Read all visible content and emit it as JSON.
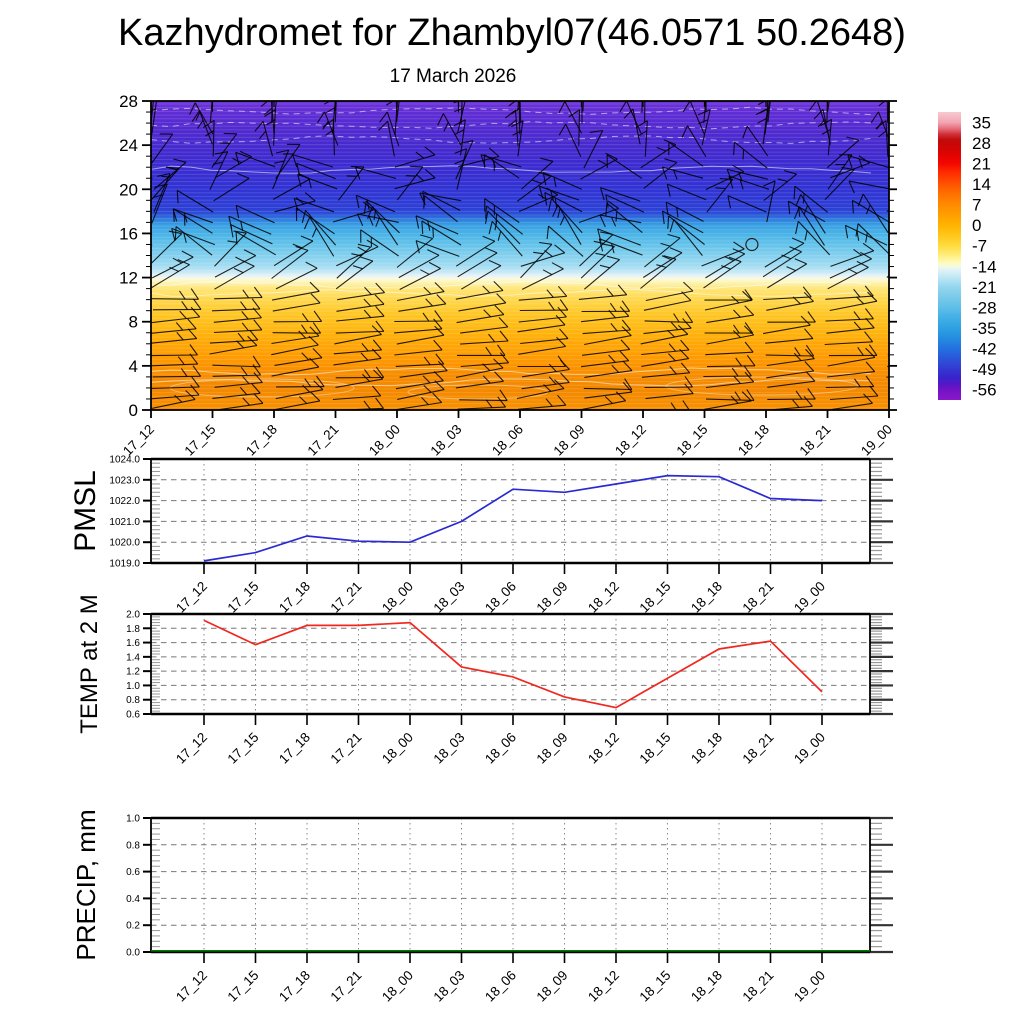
{
  "title": "Kazhydromet for Zhambyl07(46.0571 50.2648)",
  "subtitle": "17 March 2026",
  "time_labels": [
    "17_12",
    "17_15",
    "17_18",
    "17_21",
    "18_00",
    "18_03",
    "18_06",
    "18_09",
    "18_12",
    "18_15",
    "18_18",
    "18_21",
    "19_00"
  ],
  "chart_data": [
    {
      "type": "heatmap",
      "name": "temperature-height-cross-section",
      "x": [
        "17_12",
        "17_15",
        "17_18",
        "17_21",
        "18_00",
        "18_03",
        "18_06",
        "18_09",
        "18_12",
        "18_15",
        "18_18",
        "18_21",
        "19_00"
      ],
      "ylim": [
        0,
        28
      ],
      "yticks": [
        0,
        4,
        8,
        12,
        16,
        20,
        24,
        28
      ],
      "overlay": "wind-barbs",
      "wind_barbs": {
        "cols": 13,
        "rows": 29,
        "seed": 7
      },
      "calm_marker": {
        "x": 9.77,
        "level": 15
      },
      "colorbar": {
        "labels": [
          "35",
          "28",
          "21",
          "14",
          "7",
          "0",
          "-7",
          "-14",
          "-21",
          "-28",
          "-35",
          "-42",
          "-49",
          "-56"
        ],
        "value_top": 38.5,
        "value_bottom": -59.5,
        "stops": [
          [
            0,
            "#f7c9d0"
          ],
          [
            0.036,
            "#f2a6b2"
          ],
          [
            0.056,
            "#e87380"
          ],
          [
            0.077,
            "#d0303a"
          ],
          [
            0.097,
            "#c10a0a"
          ],
          [
            0.13,
            "#d40404"
          ],
          [
            0.16,
            "#ea0400"
          ],
          [
            0.18,
            "#f40800"
          ],
          [
            0.21,
            "#ff2c00"
          ],
          [
            0.25,
            "#ff5200"
          ],
          [
            0.28,
            "#ff6e00"
          ],
          [
            0.32,
            "#ff8a00"
          ],
          [
            0.355,
            "#ff9e00"
          ],
          [
            0.393,
            "#ffb400"
          ],
          [
            0.424,
            "#ffc416"
          ],
          [
            0.465,
            "#ffdc40"
          ],
          [
            0.487,
            "#ffe768"
          ],
          [
            0.507,
            "#fff394"
          ],
          [
            0.527,
            "#fdfbc6"
          ],
          [
            0.537,
            "#f4fae2"
          ],
          [
            0.547,
            "#e2f3f8"
          ],
          [
            0.568,
            "#c7eaf6"
          ],
          [
            0.59,
            "#aadff2"
          ],
          [
            0.607,
            "#95d6ee"
          ],
          [
            0.64,
            "#7bcbea"
          ],
          [
            0.68,
            "#5ebfe8"
          ],
          [
            0.71,
            "#45b1e6"
          ],
          [
            0.75,
            "#2fa1e2"
          ],
          [
            0.78,
            "#2590e0"
          ],
          [
            0.82,
            "#2372e0"
          ],
          [
            0.853,
            "#2a57da"
          ],
          [
            0.893,
            "#3338d2"
          ],
          [
            0.923,
            "#3a22cc"
          ],
          [
            0.945,
            "#5517c8"
          ],
          [
            0.965,
            "#7214c4"
          ],
          [
            1,
            "#8a17ca"
          ]
        ]
      },
      "field_gradient_stops": [
        [
          0,
          "#6e35da"
        ],
        [
          0.04,
          "#5f2dd4"
        ],
        [
          0.09,
          "#522ad0"
        ],
        [
          0.14,
          "#472ace"
        ],
        [
          0.21,
          "#3b2bd0"
        ],
        [
          0.285,
          "#3133d4"
        ],
        [
          0.32,
          "#2e3ad5"
        ],
        [
          0.35,
          "#2d40d6"
        ],
        [
          0.365,
          "#2b50d8"
        ],
        [
          0.382,
          "#2e7ade"
        ],
        [
          0.4,
          "#389ee2"
        ],
        [
          0.43,
          "#49b3e7"
        ],
        [
          0.465,
          "#65c3ea"
        ],
        [
          0.5,
          "#84d0ee"
        ],
        [
          0.536,
          "#a6ddf2"
        ],
        [
          0.552,
          "#c4e8f5"
        ],
        [
          0.565,
          "#e3f2f8"
        ],
        [
          0.572,
          "#f5f8e6"
        ],
        [
          0.58,
          "#fdf9cb"
        ],
        [
          0.594,
          "#fdef9e"
        ],
        [
          0.607,
          "#ffe577"
        ],
        [
          0.643,
          "#ffd84e"
        ],
        [
          0.679,
          "#ffca2d"
        ],
        [
          0.714,
          "#ffbf1b"
        ],
        [
          0.75,
          "#ffb30d"
        ],
        [
          0.786,
          "#ffa706"
        ],
        [
          0.821,
          "#ff9d02"
        ],
        [
          0.857,
          "#fc9300"
        ],
        [
          0.893,
          "#f68c00"
        ],
        [
          0.929,
          "#f28800"
        ],
        [
          1,
          "#f89100"
        ]
      ]
    },
    {
      "type": "line",
      "name": "PMSL",
      "x": [
        "17_12",
        "17_15",
        "17_18",
        "17_21",
        "18_00",
        "18_03",
        "18_06",
        "18_09",
        "18_12",
        "18_15",
        "18_18",
        "18_21",
        "19_00"
      ],
      "values": [
        1019.1,
        1019.5,
        1020.3,
        1020.05,
        1020.0,
        1021.0,
        1022.55,
        1022.4,
        1022.8,
        1023.2,
        1023.15,
        1022.1,
        1022.0
      ],
      "ylim": [
        1019.0,
        1024.0
      ],
      "ytick_labels": [
        "1019.0",
        "1020.0",
        "1021.0",
        "1022.0",
        "1023.0",
        "1024.0"
      ],
      "color": "#2a2ad4",
      "grid": true
    },
    {
      "type": "line",
      "name": "TEMP at 2 M",
      "x": [
        "17_12",
        "17_15",
        "17_18",
        "17_21",
        "18_00",
        "18_03",
        "18_06",
        "18_09",
        "18_12",
        "18_15",
        "18_18",
        "18_21",
        "19_00"
      ],
      "values": [
        1.91,
        1.57,
        1.84,
        1.84,
        1.88,
        1.26,
        1.12,
        0.84,
        0.69,
        1.1,
        1.51,
        1.62,
        0.91
      ],
      "ylim": [
        0.6,
        2.0
      ],
      "ytick_labels": [
        "0.6",
        "0.8",
        "1.0",
        "1.2",
        "1.4",
        "1.6",
        "1.8",
        "2.0"
      ],
      "color": "#f02820",
      "grid": true
    },
    {
      "type": "line",
      "name": "PRECIP, mm",
      "x": [
        "17_12",
        "17_15",
        "17_18",
        "17_21",
        "18_00",
        "18_03",
        "18_06",
        "18_09",
        "18_12",
        "18_15",
        "18_18",
        "18_21",
        "19_00"
      ],
      "values": [
        0,
        0,
        0,
        0,
        0,
        0,
        0,
        0,
        0,
        0,
        0,
        0,
        0
      ],
      "ylim": [
        0.0,
        1.0
      ],
      "ytick_labels": [
        "0.0",
        "0.2",
        "0.4",
        "0.6",
        "0.8",
        "1.0"
      ],
      "color": "#007700",
      "grid": true
    }
  ]
}
